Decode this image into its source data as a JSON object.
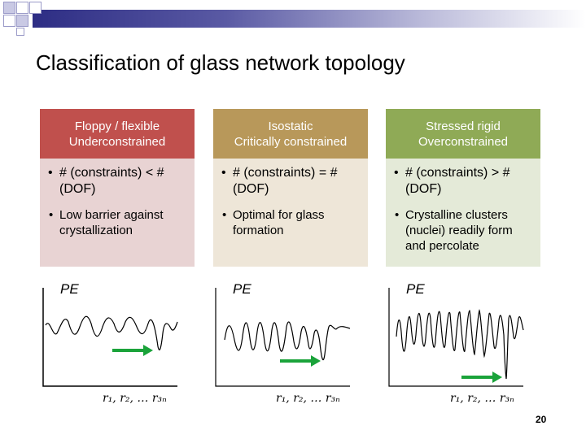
{
  "slide": {
    "title": "Classification of glass network topology",
    "page_number": "20"
  },
  "columns": [
    {
      "header_line1": "Floppy / flexible",
      "header_line2": "Underconstrained",
      "bullet1": "# (constraints) < # (DOF)",
      "bullet2": "Low barrier against crystallization",
      "header_color": "#c0504d",
      "body_color": "#e8d3d3"
    },
    {
      "header_line1": "Isostatic",
      "header_line2": "Critically constrained",
      "bullet1": "# (constraints) = # (DOF)",
      "bullet2": "Optimal for glass formation",
      "header_color": "#b8985a",
      "body_color": "#eee6d8"
    },
    {
      "header_line1": "Stressed rigid",
      "header_line2": "Overconstrained",
      "bullet1": "# (constraints) > # (DOF)",
      "bullet2": "Crystalline clusters (nuclei) readily form and percolate",
      "header_color": "#8faa56",
      "body_color": "#e4ead8"
    }
  ],
  "plots": [
    {
      "y_label": "PE",
      "x_label": "r₁, r₂, … r₃ₙ"
    },
    {
      "y_label": "PE",
      "x_label": "r₁, r₂, … r₃ₙ"
    },
    {
      "y_label": "PE",
      "x_label": "r₁, r₂, … r₃ₙ"
    }
  ],
  "arrow_color": "#1aa33a"
}
